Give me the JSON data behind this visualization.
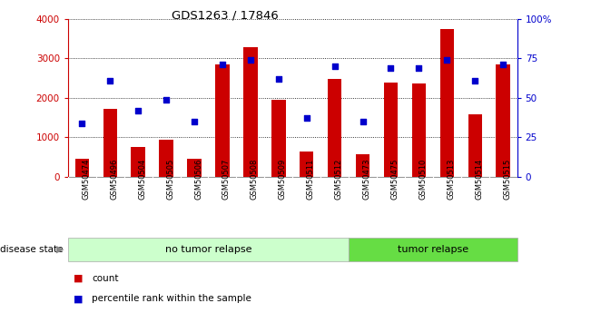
{
  "title": "GDS1263 / 17846",
  "categories": [
    "GSM50474",
    "GSM50496",
    "GSM50504",
    "GSM50505",
    "GSM50506",
    "GSM50507",
    "GSM50508",
    "GSM50509",
    "GSM50511",
    "GSM50512",
    "GSM50473",
    "GSM50475",
    "GSM50510",
    "GSM50513",
    "GSM50514",
    "GSM50515"
  ],
  "counts": [
    450,
    1720,
    750,
    950,
    450,
    2850,
    3280,
    1940,
    650,
    2480,
    570,
    2380,
    2360,
    3740,
    1580,
    2850
  ],
  "percentiles": [
    34,
    61,
    42,
    49,
    35,
    71,
    74,
    62,
    37,
    70,
    35,
    69,
    69,
    74,
    61,
    71
  ],
  "bar_color": "#cc0000",
  "dot_color": "#0000cc",
  "no_tumor_count": 10,
  "tumor_count": 6,
  "no_tumor_label": "no tumor relapse",
  "tumor_label": "tumor relapse",
  "disease_state_label": "disease state",
  "no_tumor_bg": "#ccffcc",
  "tumor_bg": "#66dd44",
  "tick_area_bg": "#cccccc",
  "legend_count_label": "count",
  "legend_pct_label": "percentile rank within the sample",
  "ylim_left": [
    0,
    4000
  ],
  "ylim_right": [
    0,
    100
  ],
  "yticks_left": [
    0,
    1000,
    2000,
    3000,
    4000
  ],
  "ytick_labels_left": [
    "0",
    "1000",
    "2000",
    "3000",
    "4000"
  ],
  "yticks_right": [
    0,
    25,
    50,
    75,
    100
  ],
  "ytick_labels_right": [
    "0",
    "25",
    "50",
    "75",
    "100%"
  ]
}
